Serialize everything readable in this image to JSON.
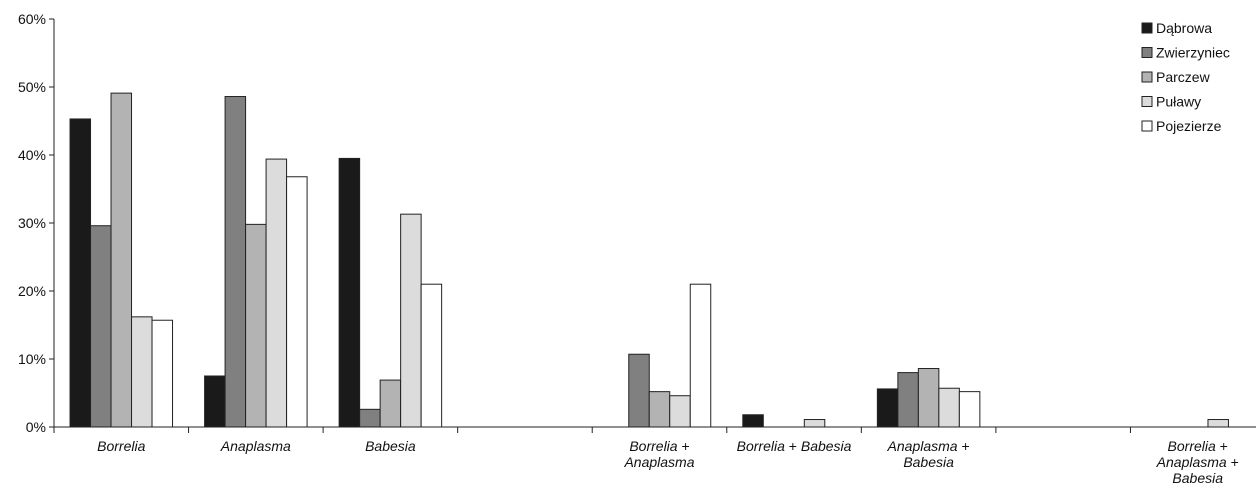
{
  "chart_data": {
    "type": "bar",
    "title": "",
    "xlabel": "",
    "ylabel": "",
    "ylim": [
      0,
      60
    ],
    "yticks": [
      "0%",
      "10%",
      "20%",
      "30%",
      "40%",
      "50%",
      "60%"
    ],
    "legend_position": "top-right",
    "categories": [
      {
        "lines": [
          [
            {
              "t": "Borrelia",
              "i": true
            }
          ]
        ]
      },
      {
        "lines": [
          [
            {
              "t": "Anaplasma",
              "i": true
            }
          ]
        ]
      },
      {
        "lines": [
          [
            {
              "t": "Babesia",
              "i": true
            }
          ]
        ]
      },
      {
        "lines": []
      },
      {
        "lines": [
          [
            {
              "t": "Borrelia",
              "i": true
            },
            {
              "t": " +",
              "i": false
            }
          ],
          [
            {
              "t": "Anaplasma",
              "i": true
            }
          ]
        ]
      },
      {
        "lines": [
          [
            {
              "t": "Borrelia",
              "i": true
            },
            {
              "t": " + ",
              "i": false
            },
            {
              "t": "Babesia",
              "i": true
            }
          ]
        ]
      },
      {
        "lines": [
          [
            {
              "t": "Anaplasma",
              "i": true
            },
            {
              "t": " +",
              "i": false
            }
          ],
          [
            {
              "t": "Babesia",
              "i": true
            }
          ]
        ]
      },
      {
        "lines": []
      },
      {
        "lines": [
          [
            {
              "t": "Borrelia",
              "i": true
            },
            {
              "t": " +",
              "i": false
            }
          ],
          [
            {
              "t": "Anaplasma",
              "i": true
            },
            {
              "t": " +",
              "i": false
            }
          ],
          [
            {
              "t": "Babesia",
              "i": true
            }
          ]
        ]
      }
    ],
    "series": [
      {
        "name": "Dąbrowa",
        "color": "#1a1a1a",
        "values": [
          45.3,
          7.5,
          39.5,
          0,
          0,
          1.8,
          5.6,
          0,
          0
        ]
      },
      {
        "name": "Zwierzyniec",
        "color": "#808080",
        "values": [
          29.6,
          48.6,
          2.6,
          0,
          10.7,
          0,
          8.0,
          0,
          0
        ]
      },
      {
        "name": "Parczew",
        "color": "#b3b3b3",
        "values": [
          49.1,
          29.8,
          6.9,
          0,
          5.2,
          0,
          8.6,
          0,
          0
        ]
      },
      {
        "name": "Puławy",
        "color": "#dcdcdc",
        "values": [
          16.2,
          39.4,
          31.3,
          0,
          4.6,
          1.1,
          5.7,
          0,
          1.1
        ]
      },
      {
        "name": "Pojezierze",
        "color": "#ffffff",
        "values": [
          15.7,
          36.8,
          21.0,
          0,
          21.0,
          0,
          5.2,
          0,
          0
        ]
      }
    ]
  }
}
